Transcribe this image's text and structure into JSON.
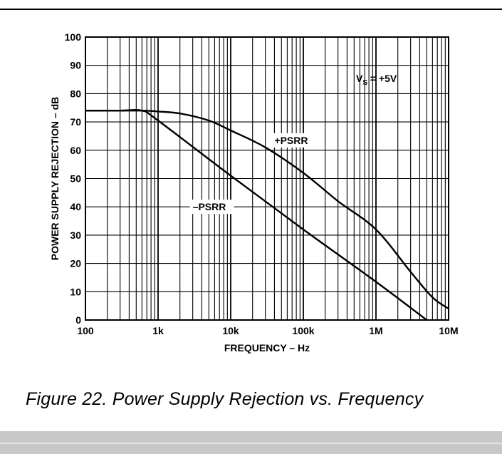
{
  "caption": "Figure 22.  Power Supply Rejection vs. Frequency",
  "chart_data": {
    "type": "line",
    "xscale": "log",
    "xlim": [
      100,
      10000000
    ],
    "ylim": [
      0,
      100
    ],
    "grid": true,
    "xlabel": "FREQUENCY – Hz",
    "ylabel": "POWER SUPPLY REJECTION – dB",
    "x_ticks": [
      100,
      1000,
      10000,
      100000,
      1000000,
      10000000
    ],
    "x_tick_labels": [
      "100",
      "1k",
      "10k",
      "100k",
      "1M",
      "10M"
    ],
    "y_ticks": [
      0,
      10,
      20,
      30,
      40,
      50,
      60,
      70,
      80,
      90,
      100
    ],
    "y_tick_labels": [
      "0",
      "10",
      "20",
      "30",
      "40",
      "50",
      "60",
      "70",
      "80",
      "90",
      "100"
    ],
    "annotation": {
      "main": "V",
      "sub": "S",
      "rest": " = +5V"
    },
    "series": [
      {
        "name": "+PSRR",
        "x": [
          100,
          300,
          600,
          1000,
          2000,
          5000,
          10000,
          30000,
          100000,
          300000,
          1000000,
          3000000,
          6000000,
          10000000
        ],
        "y": [
          74,
          74,
          74,
          73.7,
          73,
          70.5,
          67,
          61,
          52,
          42,
          32,
          17,
          8,
          4
        ]
      },
      {
        "name": "–PSRR",
        "x": [
          100,
          300,
          600,
          1000,
          10000,
          100000,
          1000000,
          5000000
        ],
        "y": [
          74,
          74,
          74,
          70.5,
          51,
          32,
          13.5,
          0
        ]
      }
    ]
  }
}
